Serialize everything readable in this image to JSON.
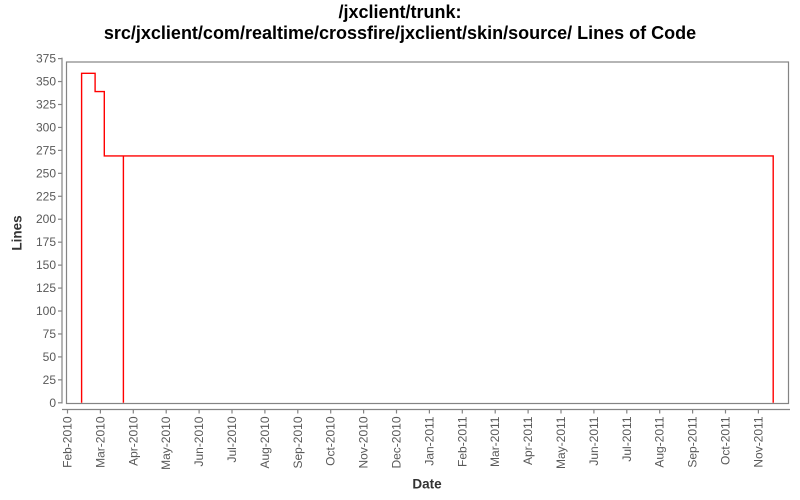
{
  "title": {
    "line1": "/jxclient/trunk:",
    "line2": "src/jxclient/com/realtime/crossfire/jxclient/skin/source/ Lines of Code"
  },
  "chart_data": {
    "type": "line",
    "subtype": "step",
    "title": "/jxclient/trunk: src/jxclient/com/realtime/crossfire/jxclient/skin/source/ Lines of Code",
    "xlabel": "Date",
    "ylabel": "Lines",
    "ylim": [
      0,
      375
    ],
    "y_ticks": [
      0,
      25,
      50,
      75,
      100,
      125,
      150,
      175,
      200,
      225,
      250,
      275,
      300,
      325,
      350,
      375
    ],
    "x_ticks": [
      "Feb-2010",
      "Mar-2010",
      "Apr-2010",
      "May-2010",
      "Jun-2010",
      "Jul-2010",
      "Aug-2010",
      "Sep-2010",
      "Oct-2010",
      "Nov-2010",
      "Dec-2010",
      "Jan-2011",
      "Feb-2011",
      "Mar-2011",
      "Apr-2011",
      "May-2011",
      "Jun-2011",
      "Jul-2011",
      "Aug-2011",
      "Sep-2011",
      "Oct-2011",
      "Nov-2011"
    ],
    "grid": false,
    "legend": false,
    "series": [
      {
        "name": "Lines of Code",
        "color": "#ff0000",
        "x_unit": "months after Feb-2010 tick",
        "vertices": [
          [
            0.43,
            0
          ],
          [
            0.43,
            359
          ],
          [
            0.84,
            359
          ],
          [
            0.84,
            339
          ],
          [
            1.12,
            339
          ],
          [
            1.12,
            269
          ],
          [
            1.7,
            269
          ],
          [
            1.7,
            0
          ],
          [
            1.7,
            269
          ],
          [
            21.45,
            269
          ],
          [
            21.45,
            0
          ]
        ]
      }
    ]
  },
  "colors": {
    "series_line": "#ff0000",
    "axis_line": "#848484",
    "plot_border": "#848484",
    "tick_label": "#595959",
    "axis_title": "#333333",
    "title_text": "#000000",
    "background": "#ffffff"
  }
}
